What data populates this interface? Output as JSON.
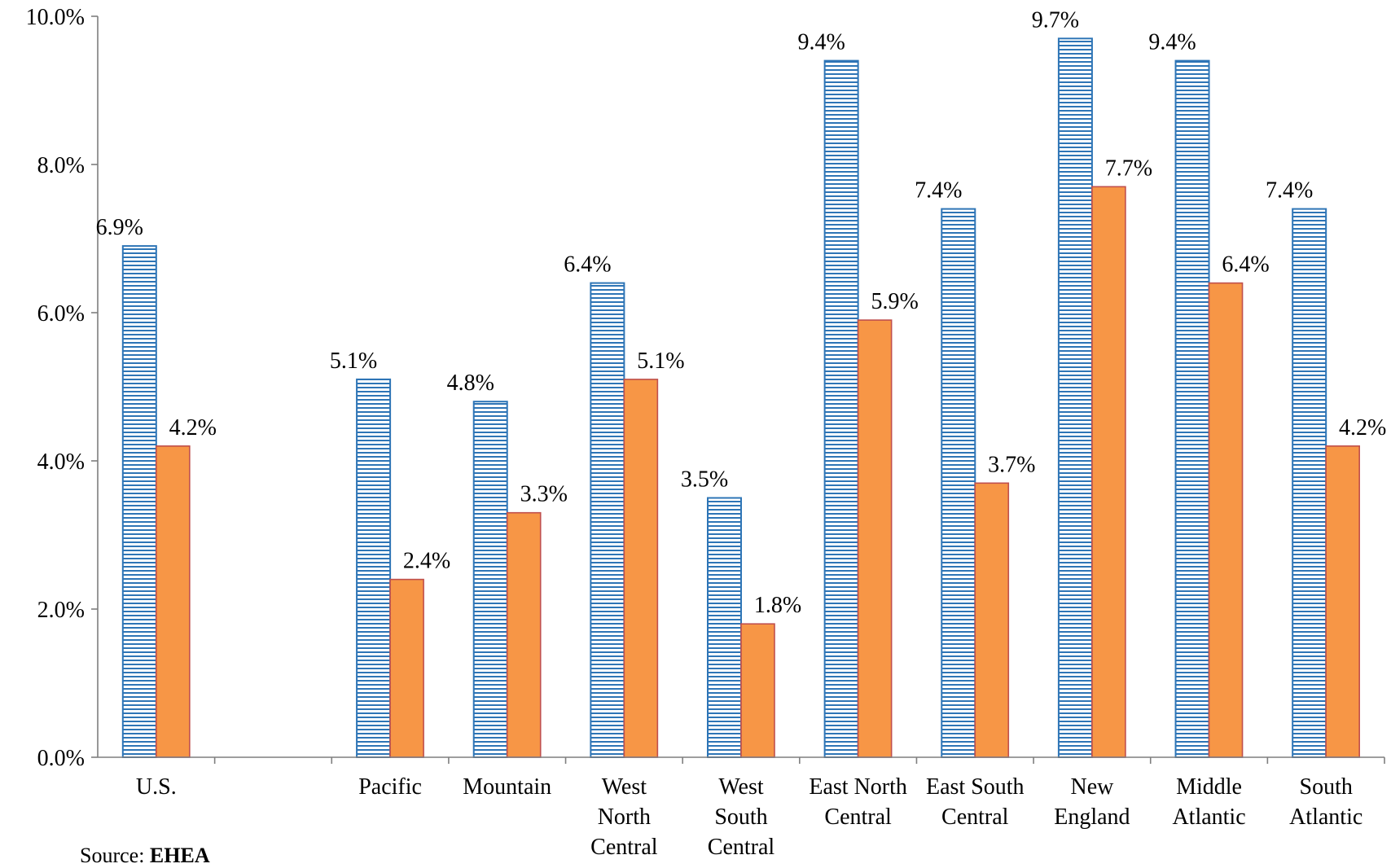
{
  "chart_data": {
    "type": "bar",
    "categories": [
      [
        "U.S."
      ],
      [],
      [
        "Pacific"
      ],
      [
        "Mountain"
      ],
      [
        "West",
        "North",
        "Central"
      ],
      [
        "West",
        "South",
        "Central"
      ],
      [
        "East North",
        "Central"
      ],
      [
        "East South",
        "Central"
      ],
      [
        "New",
        "England"
      ],
      [
        "Middle",
        "Atlantic"
      ],
      [
        "South",
        "Atlantic"
      ]
    ],
    "series": [
      {
        "values": [
          6.9,
          null,
          5.1,
          4.8,
          6.4,
          3.5,
          9.4,
          7.4,
          9.7,
          9.4,
          7.4
        ],
        "labels": [
          "6.9%",
          "",
          "5.1%",
          "4.8%",
          "6.4%",
          "3.5%",
          "9.4%",
          "7.4%",
          "9.7%",
          "9.4%",
          "7.4%"
        ],
        "color": "#2e75b6",
        "fill": "horizontal-stripes"
      },
      {
        "values": [
          4.2,
          null,
          2.4,
          3.3,
          5.1,
          1.8,
          5.9,
          3.7,
          7.7,
          6.4,
          4.2
        ],
        "labels": [
          "4.2%",
          "",
          "2.4%",
          "3.3%",
          "5.1%",
          "1.8%",
          "5.9%",
          "3.7%",
          "7.7%",
          "6.4%",
          "4.2%"
        ],
        "color": "#f79646",
        "border": "#c0504d"
      }
    ],
    "ylim": [
      0,
      10
    ],
    "yticks": [
      0,
      2,
      4,
      6,
      8,
      10
    ],
    "ytick_labels": [
      "0.0%",
      "2.0%",
      "4.0%",
      "6.0%",
      "8.0%",
      "10.0%"
    ],
    "grid": false,
    "legend": "none"
  },
  "source": {
    "prefix": "Source: ",
    "name": "EHEA"
  }
}
